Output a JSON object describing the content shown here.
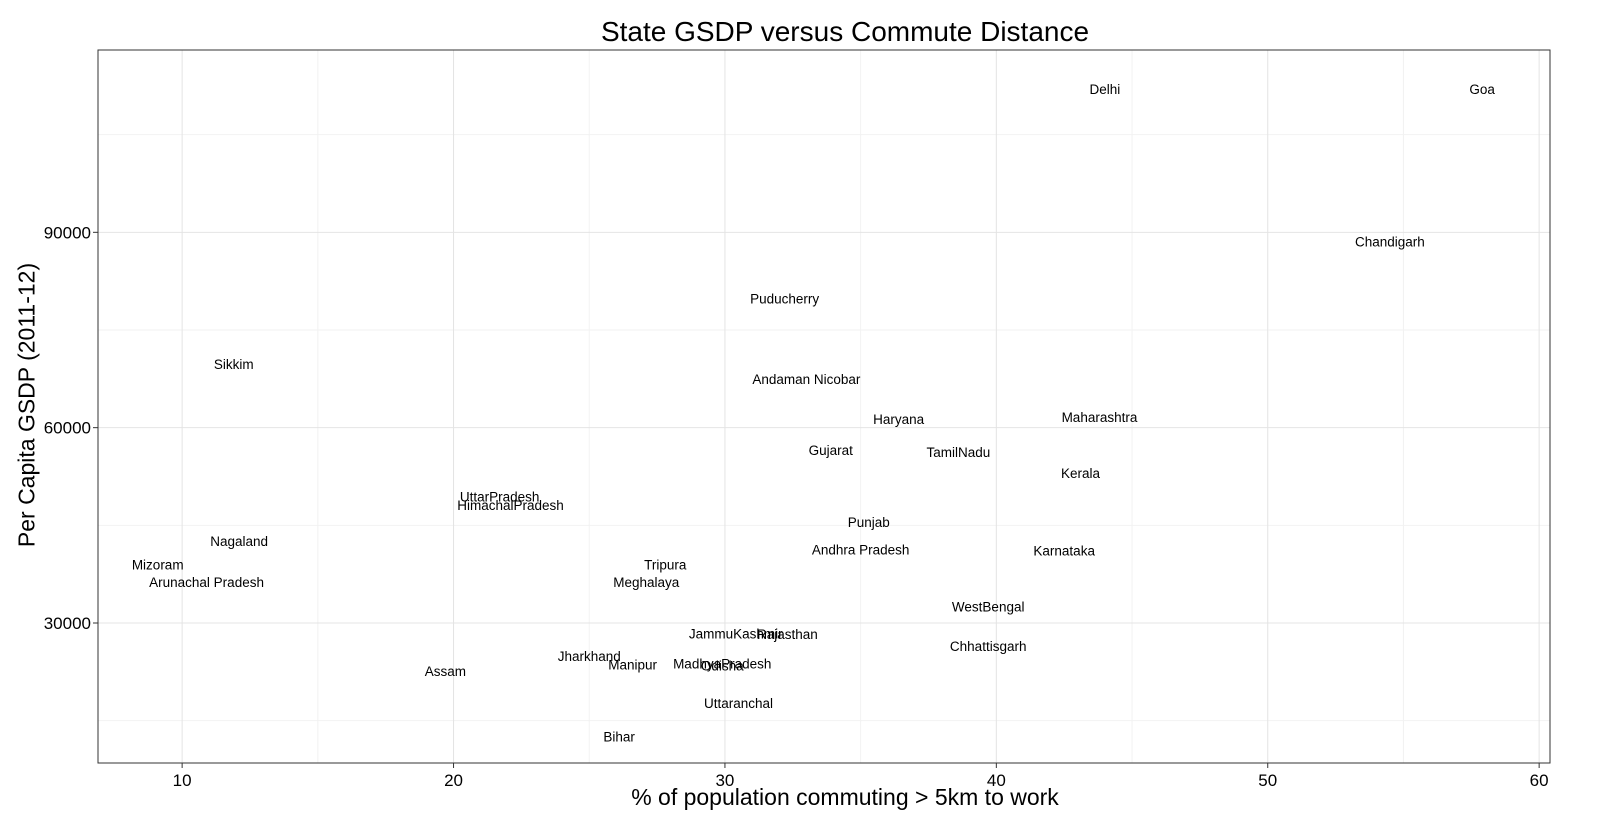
{
  "chart_data": {
    "type": "scatter",
    "title": "State GSDP versus Commute Distance",
    "xlabel": "% of population commuting > 5km to work",
    "ylabel": "Per Capita GSDP (2011-12)",
    "xlim": [
      6.9,
      60.4
    ],
    "ylim": [
      8500,
      118000
    ],
    "xticks": [
      10,
      20,
      30,
      40,
      50,
      60
    ],
    "yticks": [
      30000,
      60000,
      90000
    ],
    "grid": true,
    "marker": "text-label",
    "points": [
      {
        "label": "Delhi",
        "x": 44.0,
        "y": 112000
      },
      {
        "label": "Goa",
        "x": 57.9,
        "y": 112000
      },
      {
        "label": "Chandigarh",
        "x": 54.5,
        "y": 88600
      },
      {
        "label": "Puducherry",
        "x": 32.2,
        "y": 79800
      },
      {
        "label": "Sikkim",
        "x": 11.9,
        "y": 69800
      },
      {
        "label": "Andaman Nicobar",
        "x": 33.0,
        "y": 67500
      },
      {
        "label": "Haryana",
        "x": 36.4,
        "y": 61300
      },
      {
        "label": "Maharashtra",
        "x": 43.8,
        "y": 61600
      },
      {
        "label": "Gujarat",
        "x": 33.9,
        "y": 56600
      },
      {
        "label": "TamilNadu",
        "x": 38.6,
        "y": 56300
      },
      {
        "label": "Kerala",
        "x": 43.1,
        "y": 53000
      },
      {
        "label": "UttarPradesh",
        "x": 21.7,
        "y": 49400
      },
      {
        "label": "HimachalPradesh",
        "x": 22.1,
        "y": 48100
      },
      {
        "label": "Punjab",
        "x": 35.3,
        "y": 45500
      },
      {
        "label": "Nagaland",
        "x": 12.1,
        "y": 42600
      },
      {
        "label": "Andhra Pradesh",
        "x": 35.0,
        "y": 41300
      },
      {
        "label": "Karnataka",
        "x": 42.5,
        "y": 41100
      },
      {
        "label": "Mizoram",
        "x": 9.1,
        "y": 39000
      },
      {
        "label": "Tripura",
        "x": 27.8,
        "y": 39000
      },
      {
        "label": "Arunachal Pradesh",
        "x": 10.9,
        "y": 36300
      },
      {
        "label": "Meghalaya",
        "x": 27.1,
        "y": 36300
      },
      {
        "label": "WestBengal",
        "x": 39.7,
        "y": 32500
      },
      {
        "label": "JammuKashmir",
        "x": 30.4,
        "y": 28400
      },
      {
        "label": "Rajasthan",
        "x": 32.3,
        "y": 28300
      },
      {
        "label": "Chhattisgarh",
        "x": 39.7,
        "y": 26500
      },
      {
        "label": "Jharkhand",
        "x": 25.0,
        "y": 24900
      },
      {
        "label": "Manipur",
        "x": 26.6,
        "y": 23600
      },
      {
        "label": "MadhyaPradesh",
        "x": 29.9,
        "y": 23800
      },
      {
        "label": "Odisha",
        "x": 29.9,
        "y": 23500
      },
      {
        "label": "Assam",
        "x": 19.7,
        "y": 22600
      },
      {
        "label": "Uttaranchal",
        "x": 30.5,
        "y": 17700
      },
      {
        "label": "Bihar",
        "x": 26.1,
        "y": 12600
      }
    ]
  }
}
